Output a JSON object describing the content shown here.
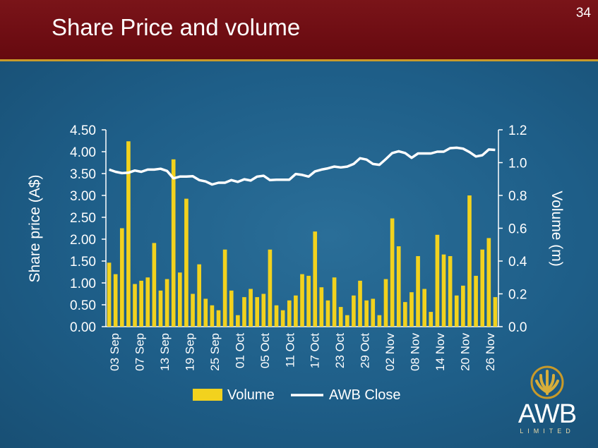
{
  "slide": {
    "title": "Share Price and volume",
    "page_number": "34"
  },
  "logo": {
    "name": "AWB",
    "subtitle": "LIMITED"
  },
  "colors": {
    "header": "#6e0e14",
    "background": "#1e5e88",
    "bar": "#f2d21e",
    "line": "#ffffff",
    "gold": "#c89a2a"
  },
  "chart_data": {
    "type": "bar",
    "title": "",
    "ylabel": "Share price (A$)",
    "y2label": "Volume (m)",
    "ylim": [
      0,
      4.5
    ],
    "y2lim": [
      0,
      1.2
    ],
    "yticks": [
      "4.50",
      "4.00",
      "3.50",
      "3.00",
      "2.50",
      "2.00",
      "1.50",
      "1.00",
      "0.50",
      "0.00"
    ],
    "y2ticks": [
      "1.2",
      "1.0",
      "0.8",
      "0.6",
      "0.4",
      "0.2",
      "0.0"
    ],
    "xtick_labels": [
      "03 Sep",
      "07 Sep",
      "13 Sep",
      "19 Sep",
      "25 Sep",
      "01 Oct",
      "05 Oct",
      "11 Oct",
      "17 Oct",
      "23 Oct",
      "29 Oct",
      "02 Nov",
      "08 Nov",
      "14 Nov",
      "20 Nov",
      "26 Nov"
    ],
    "legend": [
      "Volume",
      "AWB Close"
    ],
    "series": [
      {
        "name": "Volume",
        "type": "bar",
        "axis": "right",
        "values": [
          0.39,
          0.32,
          0.6,
          1.13,
          0.26,
          0.28,
          0.3,
          0.51,
          0.22,
          0.29,
          1.02,
          0.33,
          0.78,
          0.2,
          0.38,
          0.17,
          0.13,
          0.1,
          0.47,
          0.22,
          0.07,
          0.18,
          0.23,
          0.18,
          0.2,
          0.47,
          0.13,
          0.1,
          0.16,
          0.19,
          0.32,
          0.31,
          0.58,
          0.24,
          0.16,
          0.3,
          0.12,
          0.07,
          0.19,
          0.28,
          0.16,
          0.17,
          0.07,
          0.29,
          0.66,
          0.49,
          0.15,
          0.21,
          0.43,
          0.23,
          0.09,
          0.56,
          0.44,
          0.43,
          0.19,
          0.25,
          0.8,
          0.31,
          0.47,
          0.54,
          0.18
        ]
      },
      {
        "name": "AWB Close",
        "type": "line",
        "axis": "left",
        "values": [
          3.59,
          3.54,
          3.51,
          3.52,
          3.57,
          3.54,
          3.59,
          3.59,
          3.61,
          3.56,
          3.39,
          3.43,
          3.43,
          3.44,
          3.35,
          3.32,
          3.25,
          3.29,
          3.29,
          3.35,
          3.31,
          3.37,
          3.34,
          3.43,
          3.45,
          3.35,
          3.36,
          3.36,
          3.36,
          3.49,
          3.47,
          3.43,
          3.55,
          3.59,
          3.62,
          3.66,
          3.64,
          3.66,
          3.72,
          3.85,
          3.82,
          3.72,
          3.7,
          3.83,
          3.97,
          4.01,
          3.97,
          3.86,
          3.96,
          3.96,
          3.96,
          4.0,
          4.0,
          4.08,
          4.09,
          4.07,
          3.99,
          3.89,
          3.92,
          4.05,
          4.04
        ]
      }
    ]
  }
}
